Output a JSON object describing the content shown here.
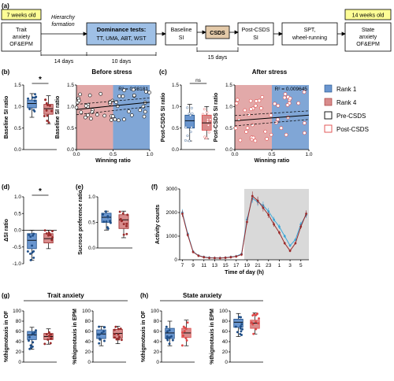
{
  "panel_labels": {
    "a": "(a)",
    "b": "(b)",
    "c": "(c)",
    "d": "(d)",
    "e": "(e)",
    "f": "(f)",
    "g": "(g)",
    "h": "(h)"
  },
  "timeline": {
    "age_start": "7 weeks old",
    "age_end": "14 weeks old",
    "step1": [
      "Trait",
      "anxiety",
      "OF&EPM"
    ],
    "hierarchy": [
      "Hierarchy",
      "formation"
    ],
    "dominance": [
      "Dominance tests:",
      "TT, UMA, ABT, WST"
    ],
    "baseline": [
      "Baseline",
      "SI"
    ],
    "csds": "CSDS",
    "post": [
      "Post-CSDS",
      "SI"
    ],
    "spt": [
      "SPT,",
      "wheel-running"
    ],
    "state": [
      "State",
      "anxiety",
      "OF&EPM"
    ],
    "d1": "14 days",
    "d2": "10 days",
    "d3": "15 days"
  },
  "legend": {
    "rank1": "Rank 1",
    "rank4": "Rank 4",
    "pre": "Pre-CSDS",
    "post": "Post-CSDS"
  },
  "colors": {
    "rank1": "#6a96cf",
    "rank4": "#d88c8c",
    "rank1_dark": "#1f4e87",
    "rank4_dark": "#9b2b2b",
    "post_red": "#e04848",
    "step_fill": "#9fc0e6",
    "csds_fill": "#e3c9a8",
    "age_fill": "#fdfd96",
    "gray": "#d9d9d9"
  },
  "text": {
    "before": "Before stress",
    "after": "After stress",
    "r2_before": "R² = 0.08181",
    "r2_after": "R² = 0.009645",
    "winning_ratio": "Winning ratio",
    "baseline_si": "Baseline SI ratio",
    "post_si": "Post-CSDS SI ratio",
    "delta_si": "ΔSI ratio",
    "sucrose": "Sucrose preference ratio",
    "activity": "Activity counts",
    "time": "Time of day (h)",
    "trait": "Trait anxiety",
    "state": "State anxiety",
    "of": "%thigmotaxis in OF",
    "epm": "%thigmotaxis in EPM",
    "star": "*",
    "ns": "ns"
  },
  "chart_data": [
    {
      "id": "b_box",
      "type": "box",
      "ylabel": "Baseline SI ratio",
      "ylim": [
        0,
        1.5
      ],
      "groups": [
        {
          "name": "Rank 1",
          "median": 1.07,
          "q1": 0.97,
          "q3": 1.15,
          "min": 0.75,
          "max": 1.3
        },
        {
          "name": "Rank 4",
          "median": 0.95,
          "q1": 0.82,
          "q3": 1.05,
          "min": 0.6,
          "max": 1.25
        }
      ],
      "significance": "*"
    },
    {
      "id": "b_scatter",
      "type": "scatter",
      "title": "Before stress",
      "xlabel": "Winning ratio",
      "ylabel": "Baseline SI ratio",
      "xlim": [
        0,
        1
      ],
      "ylim": [
        0,
        1.5
      ],
      "r2": 0.08181,
      "fit": {
        "y0": 0.93,
        "y1": 1.1
      }
    },
    {
      "id": "c_box",
      "type": "box",
      "ylabel": "Post-CSDS SI ratio",
      "ylim": [
        0,
        1.5
      ],
      "groups": [
        {
          "name": "Rank 1",
          "median": 0.67,
          "q1": 0.5,
          "q3": 0.8,
          "min": 0.2,
          "max": 1.05
        },
        {
          "name": "Rank 4",
          "median": 0.62,
          "q1": 0.45,
          "q3": 0.8,
          "min": 0.25,
          "max": 1.0
        }
      ],
      "significance": "ns"
    },
    {
      "id": "c_scatter",
      "type": "scatter",
      "title": "After stress",
      "xlabel": "Winning ratio",
      "ylabel": "Post-CSDS SI ratio",
      "xlim": [
        0,
        1
      ],
      "ylim": [
        0,
        1.5
      ],
      "r2": 0.009645,
      "fit": {
        "y0": 0.67,
        "y1": 0.8
      }
    },
    {
      "id": "d_box",
      "type": "box",
      "ylabel": "ΔSI ratio",
      "ylim": [
        -1,
        1
      ],
      "groups": [
        {
          "name": "Rank 1",
          "median": -0.3,
          "q1": -0.55,
          "q3": -0.1,
          "min": -0.9,
          "max": 0.0
        },
        {
          "name": "Rank 4",
          "median": -0.25,
          "q1": -0.38,
          "q3": -0.1,
          "min": -0.55,
          "max": 0.0
        }
      ],
      "significance": "*"
    },
    {
      "id": "e_box",
      "type": "box",
      "ylabel": "Sucrose preference ratio",
      "ylim": [
        0,
        1
      ],
      "groups": [
        {
          "name": "Rank 1",
          "median": 0.6,
          "q1": 0.5,
          "q3": 0.68,
          "min": 0.35,
          "max": 0.72
        },
        {
          "name": "Rank 4",
          "median": 0.55,
          "q1": 0.38,
          "q3": 0.65,
          "min": 0.2,
          "max": 0.72
        }
      ]
    },
    {
      "id": "f_line",
      "type": "line",
      "ylabel": "Activity counts",
      "xlabel": "Time of day (h)",
      "ylim": [
        0,
        3000
      ],
      "x": [
        "7",
        "8",
        "9",
        "10",
        "11",
        "12",
        "13",
        "14",
        "15",
        "16",
        "17",
        "18",
        "19",
        "20",
        "21",
        "22",
        "23",
        "0",
        "1",
        "2",
        "3",
        "4",
        "5",
        "6"
      ],
      "xticks": [
        "7",
        "9",
        "11",
        "13",
        "15",
        "17",
        "19",
        "21",
        "23",
        "1",
        "3",
        "5"
      ],
      "series": [
        {
          "name": "Rank 1",
          "values": [
            2000,
            1100,
            350,
            180,
            120,
            90,
            80,
            80,
            90,
            120,
            150,
            250,
            1700,
            2600,
            2450,
            2300,
            2050,
            1700,
            1400,
            1000,
            600,
            850,
            1500,
            1900
          ]
        },
        {
          "name": "Rank 4",
          "values": [
            1950,
            1050,
            330,
            170,
            110,
            80,
            75,
            70,
            85,
            110,
            140,
            220,
            1600,
            2700,
            2500,
            2200,
            1900,
            1500,
            1150,
            700,
            380,
            700,
            1400,
            1950
          ]
        }
      ],
      "dark_phase": [
        "19",
        "6"
      ]
    },
    {
      "id": "g_of",
      "type": "box",
      "ylabel": "%thigmotaxis in OF",
      "ylim": [
        0,
        100
      ],
      "groups": [
        {
          "name": "Rank 1",
          "median": 53,
          "q1": 44,
          "q3": 60,
          "min": 25,
          "max": 68
        },
        {
          "name": "Rank 4",
          "median": 50,
          "q1": 44,
          "q3": 56,
          "min": 35,
          "max": 65
        }
      ]
    },
    {
      "id": "g_epm",
      "type": "box",
      "ylabel": "%thigmotaxis in EPM",
      "ylim": [
        0,
        100
      ],
      "groups": [
        {
          "name": "Rank 1",
          "median": 55,
          "q1": 46,
          "q3": 63,
          "min": 32,
          "max": 70
        },
        {
          "name": "Rank 4",
          "median": 56,
          "q1": 47,
          "q3": 64,
          "min": 36,
          "max": 70
        }
      ]
    },
    {
      "id": "h_of",
      "type": "box",
      "ylabel": "%thigmotaxis in OF",
      "ylim": [
        0,
        100
      ],
      "groups": [
        {
          "name": "Rank 1",
          "median": 57,
          "q1": 46,
          "q3": 66,
          "min": 32,
          "max": 80
        },
        {
          "name": "Rank 4",
          "median": 57,
          "q1": 48,
          "q3": 66,
          "min": 32,
          "max": 82
        }
      ]
    },
    {
      "id": "h_epm",
      "type": "box",
      "ylabel": "%thigmotaxis in EPM",
      "ylim": [
        0,
        100
      ],
      "groups": [
        {
          "name": "Rank 1",
          "median": 78,
          "q1": 68,
          "q3": 84,
          "min": 50,
          "max": 95
        },
        {
          "name": "Rank 4",
          "median": 76,
          "q1": 66,
          "q3": 82,
          "min": 55,
          "max": 96
        }
      ]
    }
  ]
}
